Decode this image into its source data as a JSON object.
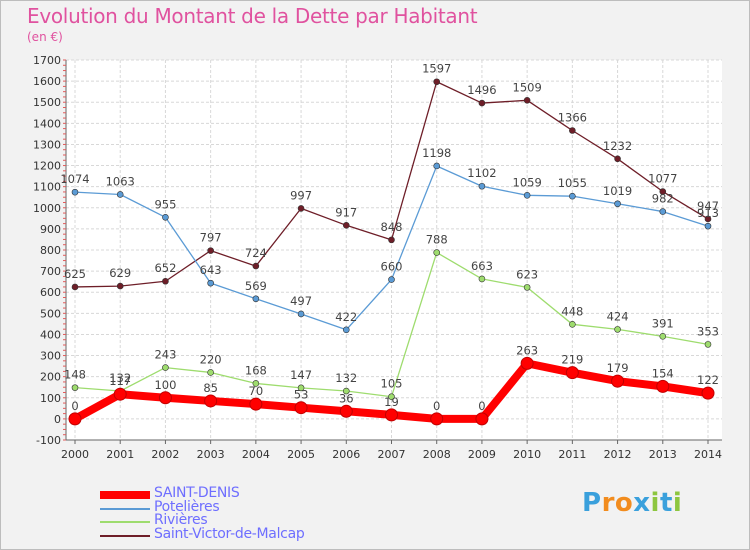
{
  "header": {
    "title": "Evolution du Montant de la Dette par Habitant",
    "unit": "(en €)"
  },
  "logo": {
    "letters": [
      "P",
      "r",
      "o",
      "x",
      "i",
      "t",
      "i"
    ],
    "colors": [
      "#3aa0dc",
      "#f28c1e",
      "#f28c1e",
      "#3aa0dc",
      "#8dc63f",
      "#3aa0dc",
      "#8dc63f"
    ]
  },
  "chart_data": {
    "type": "line",
    "title": "Evolution du Montant de la Dette par Habitant",
    "ylabel": "(en €)",
    "x": [
      "2000",
      "2001",
      "2002",
      "2003",
      "2004",
      "2005",
      "2006",
      "2007",
      "2008",
      "2009",
      "2010",
      "2011",
      "2012",
      "2013",
      "2014"
    ],
    "ylim": [
      -100,
      1700
    ],
    "yticks": [
      -100,
      0,
      100,
      200,
      300,
      400,
      500,
      600,
      700,
      800,
      900,
      1000,
      1100,
      1200,
      1300,
      1400,
      1500,
      1600,
      1700
    ],
    "grid": true,
    "legend": "bottom-left",
    "series": [
      {
        "name": "Saint-Victor-de-Malcap",
        "color": "#6e1e28",
        "values": [
          625,
          629,
          652,
          797,
          724,
          997,
          917,
          848,
          1597,
          1496,
          1509,
          1366,
          1232,
          1077,
          947
        ]
      },
      {
        "name": "Potelières",
        "color": "#5b9bd5",
        "values": [
          1074,
          1063,
          955,
          643,
          569,
          497,
          422,
          660,
          1198,
          1102,
          1059,
          1055,
          1019,
          982,
          913
        ]
      },
      {
        "name": "Rivières",
        "color": "#9edc6e",
        "values": [
          148,
          132,
          243,
          220,
          168,
          147,
          132,
          105,
          788,
          663,
          623,
          448,
          424,
          391,
          353
        ]
      },
      {
        "name": "SAINT-DENIS",
        "color": "#ff0000",
        "values": [
          0,
          117,
          100,
          85,
          70,
          53,
          36,
          19,
          0,
          0,
          263,
          219,
          179,
          154,
          122
        ]
      }
    ],
    "legend_order": [
      "SAINT-DENIS",
      "Potelières",
      "Rivières",
      "Saint-Victor-de-Malcap"
    ]
  }
}
